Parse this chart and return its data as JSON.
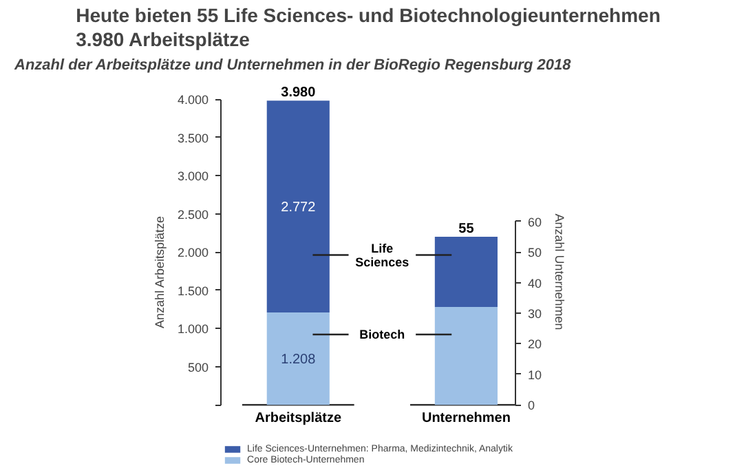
{
  "chart_data": [
    {
      "type": "bar",
      "stacked": true,
      "title": "Heute bieten 55 Life Sciences- und Biotechnologieunternehmen\n3.980 Arbeitsplätze",
      "subtitle": "Anzahl der Arbeitsplätze und Unternehmen in der BioRegio Regensburg 2018",
      "ylabel": "Anzahl Arbeitsplätze",
      "categories": [
        "Arbeitsplätze"
      ],
      "series": [
        {
          "name": "Core Biotech-Unternehmen",
          "color": "#9dc0e6",
          "values": [
            1208
          ],
          "value_labels": [
            "1.208"
          ]
        },
        {
          "name": "Life Sciences-Unternehmen: Pharma, Medizintechnik, Analytik",
          "color": "#3c5da9",
          "values": [
            2772
          ],
          "value_labels": [
            "2.772"
          ]
        }
      ],
      "totals": [
        "3.980"
      ],
      "ylim": [
        0,
        4000
      ],
      "yticks": [
        {
          "value": 0,
          "label": null
        },
        {
          "value": 500,
          "label": "500"
        },
        {
          "value": 1000,
          "label": "1.000"
        },
        {
          "value": 1500,
          "label": "1.500"
        },
        {
          "value": 2000,
          "label": "2.000"
        },
        {
          "value": 2500,
          "label": "2.500"
        },
        {
          "value": 3000,
          "label": "3.000"
        },
        {
          "value": 3500,
          "label": "3.500"
        },
        {
          "value": 4000,
          "label": "4.000"
        }
      ],
      "annotations": [
        "Life\nSciences",
        "Biotech"
      ],
      "legend": "bottom",
      "grid": false
    },
    {
      "type": "bar",
      "stacked": true,
      "y2label": "Anzahl Unternehmen",
      "categories": [
        "Unternehmen"
      ],
      "series": [
        {
          "color": "#9dc0e6",
          "values": [
            32
          ],
          "axis": "y2"
        },
        {
          "color": "#3c5da9",
          "values": [
            23
          ],
          "axis": "y2"
        }
      ],
      "totals": [
        "55"
      ],
      "y2lim": [
        0,
        60
      ],
      "y2ticks": [
        0,
        10,
        20,
        30,
        40,
        50,
        60
      ],
      "grid": false
    }
  ]
}
